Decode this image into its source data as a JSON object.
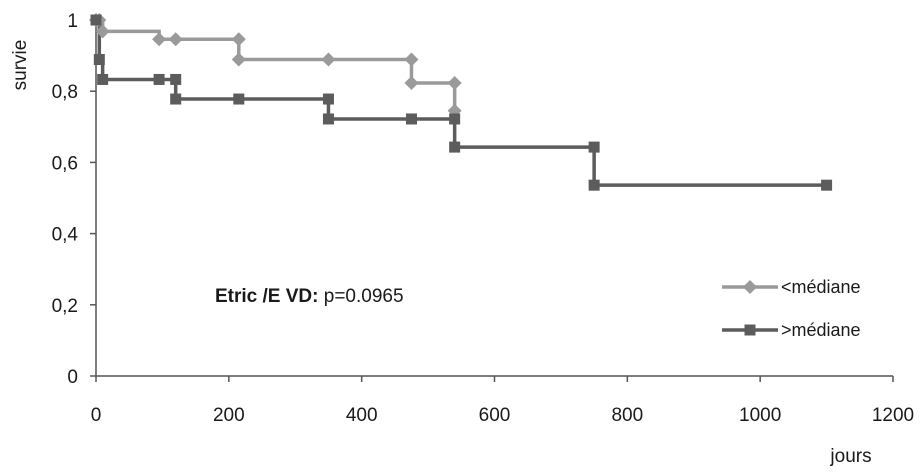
{
  "chart_data": {
    "type": "line",
    "step": true,
    "xlabel": "jours",
    "ylabel": "survie",
    "xlim": [
      0,
      1200
    ],
    "ylim": [
      0,
      1
    ],
    "xticks": [
      0,
      200,
      400,
      600,
      800,
      1000,
      1200
    ],
    "yticks": [
      0,
      0.2,
      0.4,
      0.6,
      0.8,
      1
    ],
    "xtick_labels": [
      "0",
      "200",
      "400",
      "600",
      "800",
      "1000",
      "1200"
    ],
    "ytick_labels": [
      "0",
      "0,2",
      "0,4",
      "0,6",
      "0,8",
      "1"
    ],
    "grid": false,
    "legend_position": "right",
    "annotation": {
      "bold": "Etric /E VD:",
      "text": " p=0.0965"
    },
    "series": [
      {
        "name": "<médiane",
        "color": "#9a9a9a",
        "marker": "diamond",
        "x": [
          0,
          5,
          10,
          95,
          120,
          215,
          350,
          475,
          540
        ],
        "y": [
          1,
          1,
          0.968,
          0.946,
          0.946,
          0.946,
          0.889,
          0.889,
          0.823
        ],
        "drop_to": [
          null,
          1,
          0.968,
          0.946,
          0.946,
          0.889,
          0.889,
          0.823,
          0.745
        ]
      },
      {
        "name": ">médiane",
        "color": "#5c5c5c",
        "marker": "square",
        "x": [
          0,
          5,
          10,
          95,
          120,
          215,
          350,
          475,
          540,
          750,
          1100
        ],
        "y": [
          1,
          0.889,
          0.833,
          0.833,
          0.833,
          0.778,
          0.778,
          0.722,
          0.722,
          0.643,
          0.536
        ],
        "drop_to": [
          null,
          0.889,
          0.833,
          0.833,
          0.778,
          0.778,
          0.722,
          0.722,
          0.643,
          0.536,
          null
        ]
      }
    ]
  }
}
